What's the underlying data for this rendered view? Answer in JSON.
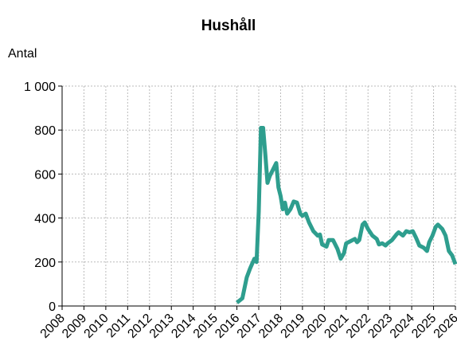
{
  "chart_data": {
    "type": "line",
    "title": "Hushåll",
    "y_label": "Antal",
    "x": [
      2016.0,
      2016.25,
      2016.45,
      2016.6,
      2016.8,
      2016.9,
      2017.0,
      2017.1,
      2017.2,
      2017.3,
      2017.4,
      2017.5,
      2017.6,
      2017.8,
      2017.9,
      2018.0,
      2018.1,
      2018.2,
      2018.3,
      2018.45,
      2018.6,
      2018.75,
      2018.9,
      2019.0,
      2019.15,
      2019.3,
      2019.5,
      2019.7,
      2019.8,
      2019.9,
      2020.1,
      2020.2,
      2020.4,
      2020.6,
      2020.75,
      2020.9,
      2021.0,
      2021.2,
      2021.4,
      2021.5,
      2021.6,
      2021.75,
      2021.85,
      2022.0,
      2022.2,
      2022.4,
      2022.5,
      2022.65,
      2022.8,
      2022.9,
      2023.1,
      2023.3,
      2023.4,
      2023.6,
      2023.75,
      2023.9,
      2024.05,
      2024.2,
      2024.35,
      2024.55,
      2024.7,
      2024.8,
      2024.95,
      2025.1,
      2025.2,
      2025.4,
      2025.55,
      2025.7,
      2025.85,
      2026.0
    ],
    "series": [
      {
        "name": "Hushåll",
        "color": "#2e9e8e",
        "values": [
          15,
          35,
          130,
          170,
          215,
          200,
          430,
          810,
          810,
          690,
          560,
          590,
          610,
          650,
          540,
          500,
          440,
          470,
          420,
          440,
          475,
          470,
          420,
          410,
          420,
          380,
          340,
          320,
          325,
          280,
          270,
          300,
          300,
          260,
          215,
          240,
          285,
          295,
          305,
          290,
          300,
          370,
          380,
          350,
          320,
          305,
          280,
          285,
          275,
          285,
          300,
          325,
          335,
          320,
          340,
          335,
          340,
          310,
          275,
          265,
          250,
          290,
          320,
          360,
          370,
          350,
          320,
          250,
          230,
          190
        ]
      }
    ],
    "xlim": [
      2008,
      2026
    ],
    "xticks": [
      2008,
      2009,
      2010,
      2011,
      2012,
      2013,
      2014,
      2015,
      2016,
      2017,
      2018,
      2019,
      2020,
      2021,
      2022,
      2023,
      2024,
      2025,
      2026
    ],
    "ylim": [
      0,
      1000
    ],
    "yticks": [
      0,
      200,
      400,
      600,
      800,
      {
        "value": 1000,
        "label": "1 000"
      }
    ],
    "grid": true
  }
}
